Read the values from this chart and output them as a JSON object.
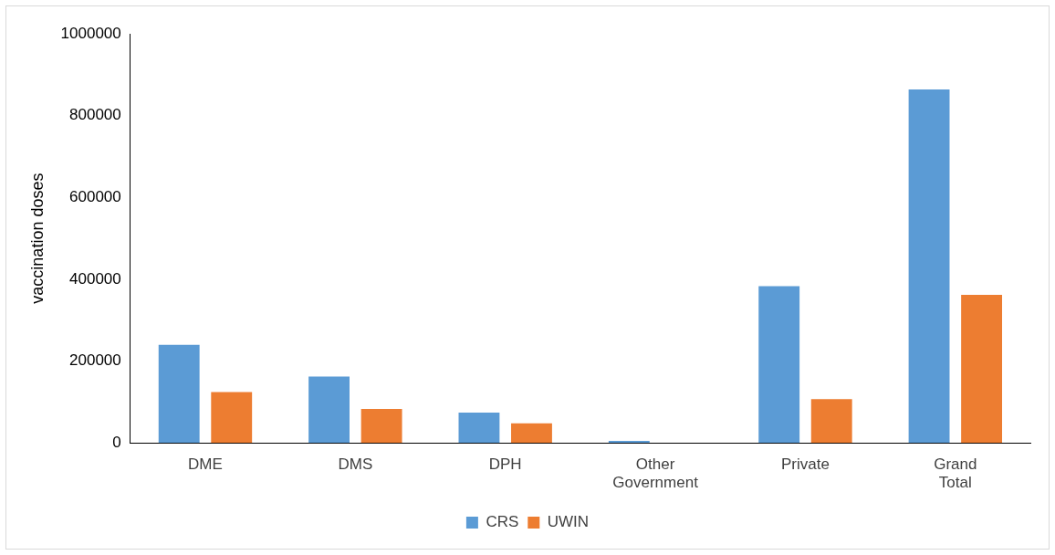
{
  "chart_data": {
    "type": "bar",
    "ylabel": "vaccination doses",
    "categories": [
      "DME",
      "DMS",
      "DPH",
      "Other Government",
      "Private",
      "Grand Total"
    ],
    "series": [
      {
        "name": "CRS",
        "color": "#5b9bd5",
        "values": [
          240000,
          162000,
          74000,
          5000,
          383000,
          864000
        ]
      },
      {
        "name": "UWIN",
        "color": "#ed7d31",
        "values": [
          124000,
          83000,
          48000,
          0,
          107000,
          362000
        ]
      }
    ],
    "ylim": [
      0,
      1000000
    ],
    "yticks": [
      0,
      200000,
      400000,
      600000,
      800000,
      1000000
    ],
    "grid": false,
    "legend": "bottom"
  }
}
